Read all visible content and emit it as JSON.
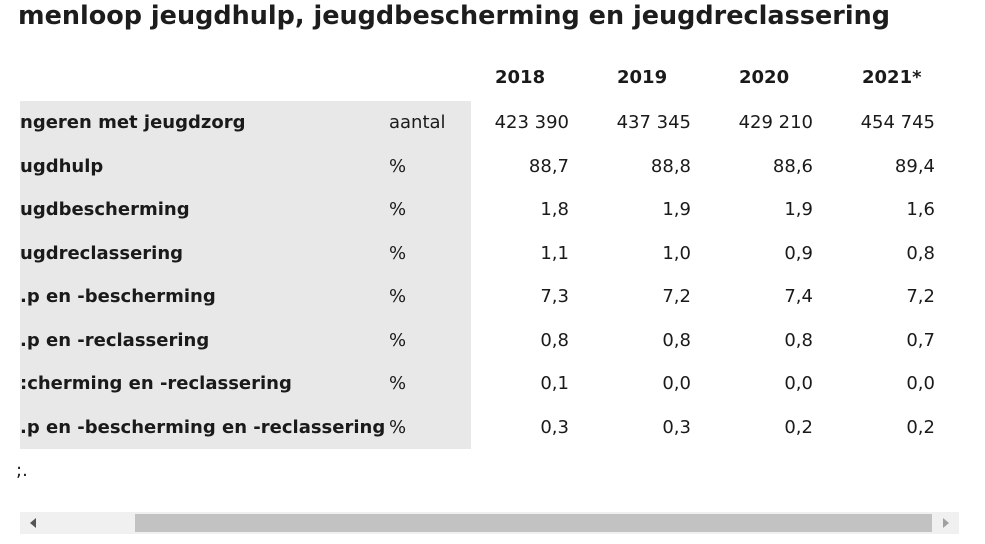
{
  "title": "menloop jeugdhulp, jeugdbescherming en jeugdreclassering",
  "table": {
    "headers": [
      "2018",
      "2019",
      "2020",
      "2021*"
    ],
    "rows": [
      {
        "label": "ngeren met jeugdzorg",
        "unit": "aantal",
        "values": [
          "423 390",
          "437 345",
          "429 210",
          "454 745"
        ]
      },
      {
        "label": "ugdhulp",
        "unit": "%",
        "values": [
          "88,7",
          "88,8",
          "88,6",
          "89,4"
        ]
      },
      {
        "label": "ugdbescherming",
        "unit": "%",
        "values": [
          "1,8",
          "1,9",
          "1,9",
          "1,6"
        ]
      },
      {
        "label": "ugdreclassering",
        "unit": "%",
        "values": [
          "1,1",
          "1,0",
          "0,9",
          "0,8"
        ]
      },
      {
        "label": ".p en -bescherming",
        "unit": "%",
        "values": [
          "7,3",
          "7,2",
          "7,4",
          "7,2"
        ]
      },
      {
        "label": ".p en -reclassering",
        "unit": "%",
        "values": [
          "0,8",
          "0,8",
          "0,8",
          "0,7"
        ]
      },
      {
        "label": ":cherming en -reclassering",
        "unit": "%",
        "values": [
          "0,1",
          "0,0",
          "0,0",
          "0,0"
        ]
      },
      {
        "label": ".p en -bescherming en -reclassering",
        "unit": "%",
        "values": [
          "0,3",
          "0,3",
          "0,2",
          "0,2"
        ]
      }
    ]
  },
  "footnote": ";.",
  "scrollbar": {
    "left_icon": "triangle-left-icon",
    "right_icon": "triangle-right-icon",
    "arrow_color": "#555555",
    "thumb_color": "#c2c2c2",
    "track_color": "#f0f0f0"
  }
}
